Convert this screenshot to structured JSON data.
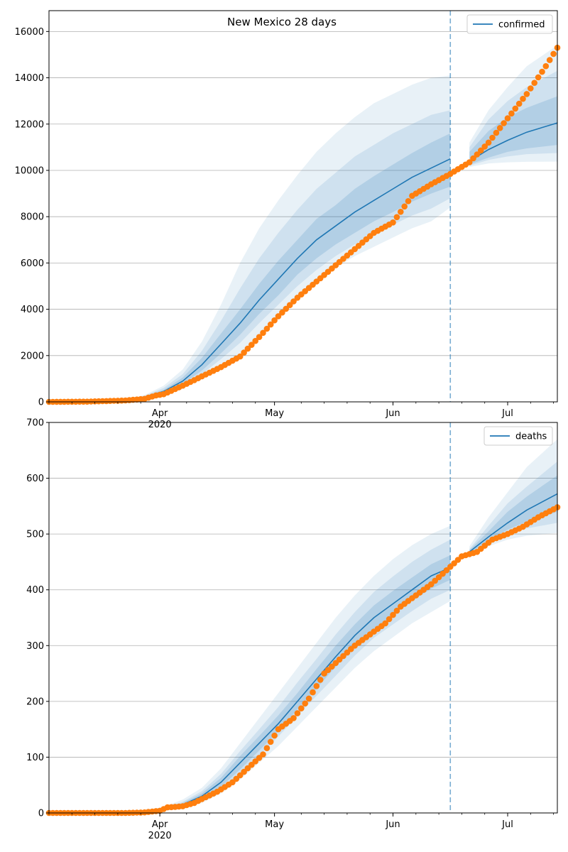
{
  "chart_data": [
    {
      "type": "line",
      "title": "New Mexico 28 days",
      "xlabel": "",
      "ylabel": "",
      "ylim": [
        0,
        16900
      ],
      "xlim_days": [
        0,
        133
      ],
      "yticks": [
        0,
        2000,
        4000,
        6000,
        8000,
        10000,
        12000,
        14000,
        16000
      ],
      "grid": true,
      "legend": "top-right",
      "x_axis": {
        "type": "date",
        "start": "2020-03-03",
        "ticks": [
          {
            "day": 29,
            "label": "Apr",
            "sublabel": "2020"
          },
          {
            "day": 59,
            "label": "May",
            "sublabel": ""
          },
          {
            "day": 90,
            "label": "Jun",
            "sublabel": ""
          },
          {
            "day": 120,
            "label": "Jul",
            "sublabel": ""
          }
        ],
        "minor_ticks": [
          0,
          6,
          12,
          18,
          24,
          36,
          42,
          48,
          54,
          66,
          72,
          78,
          84,
          96,
          102,
          108,
          114,
          126,
          132
        ]
      },
      "forecast_start_day": 105,
      "series": [
        {
          "name": "confirmed",
          "kind": "model",
          "color": "#1f77b4",
          "x": [
            0,
            10,
            20,
            25,
            30,
            35,
            40,
            45,
            50,
            55,
            60,
            65,
            70,
            75,
            80,
            85,
            90,
            95,
            100,
            105,
            110,
            115,
            120,
            125,
            133
          ],
          "y": [
            0,
            10,
            80,
            200,
            450,
            900,
            1600,
            2500,
            3400,
            4400,
            5300,
            6200,
            7000,
            7600,
            8200,
            8700,
            9200,
            9700,
            10100,
            10500,
            10400,
            10900,
            11300,
            11650,
            12050
          ],
          "bands": [
            {
              "lower": [
                0,
                8,
                55,
                140,
                300,
                600,
                1000,
                1500,
                2100,
                2900,
                3600,
                4400,
                5100,
                5800,
                6300,
                6700,
                7100,
                7500,
                7800,
                8400,
                10150,
                10300,
                10350,
                10370,
                10380
              ],
              "upper": [
                0,
                14,
                110,
                290,
                700,
                1400,
                2600,
                4200,
                6000,
                7500,
                8700,
                9800,
                10800,
                11600,
                12300,
                12900,
                13300,
                13700,
                14000,
                14100,
                11200,
                12600,
                13600,
                14500,
                15400
              ]
            },
            {
              "lower": [
                0,
                9,
                62,
                160,
                350,
                700,
                1200,
                1850,
                2550,
                3400,
                4200,
                5000,
                5700,
                6300,
                6800,
                7250,
                7650,
                8050,
                8350,
                8800,
                10200,
                10450,
                10600,
                10700,
                10750
              ],
              "upper": [
                0,
                12,
                100,
                260,
                600,
                1200,
                2200,
                3500,
                4900,
                6200,
                7300,
                8300,
                9200,
                9900,
                10600,
                11100,
                11600,
                12000,
                12400,
                12600,
                11000,
                12200,
                13000,
                13600,
                14300
              ]
            },
            {
              "lower": [
                0,
                9,
                70,
                175,
                390,
                780,
                1350,
                2100,
                2900,
                3800,
                4600,
                5500,
                6200,
                6800,
                7300,
                7800,
                8200,
                8650,
                9000,
                9300,
                10250,
                10550,
                10800,
                10950,
                11100
              ],
              "upper": [
                0,
                11,
                90,
                230,
                520,
                1050,
                1900,
                2950,
                4000,
                5100,
                6100,
                7000,
                7900,
                8500,
                9200,
                9750,
                10250,
                10750,
                11200,
                11600,
                10800,
                11700,
                12300,
                12700,
                13200
              ]
            }
          ]
        },
        {
          "name": "",
          "kind": "observed",
          "color": "#ff7f0e",
          "x": [
            0,
            10,
            20,
            25,
            28,
            30,
            35,
            40,
            45,
            50,
            55,
            60,
            65,
            70,
            75,
            80,
            85,
            90,
            95,
            100,
            105,
            110,
            115,
            120,
            125,
            130,
            133
          ],
          "y": [
            0,
            10,
            60,
            130,
            280,
            330,
            700,
            1100,
            1500,
            1960,
            2800,
            3700,
            4500,
            5200,
            5900,
            6600,
            7300,
            7750,
            8900,
            9400,
            9850,
            10350,
            11200,
            12250,
            13300,
            14500,
            15300
          ]
        }
      ]
    },
    {
      "type": "line",
      "title": "",
      "xlabel": "",
      "ylabel": "",
      "ylim": [
        0,
        700
      ],
      "xlim_days": [
        0,
        133
      ],
      "yticks": [
        0,
        100,
        200,
        300,
        400,
        500,
        600,
        700
      ],
      "grid": true,
      "legend": "top-right",
      "x_axis": {
        "type": "date",
        "start": "2020-03-03",
        "ticks": [
          {
            "day": 29,
            "label": "Apr",
            "sublabel": "2020"
          },
          {
            "day": 59,
            "label": "May",
            "sublabel": ""
          },
          {
            "day": 90,
            "label": "Jun",
            "sublabel": ""
          },
          {
            "day": 120,
            "label": "Jul",
            "sublabel": ""
          }
        ],
        "minor_ticks": [
          0,
          6,
          12,
          18,
          24,
          36,
          42,
          48,
          54,
          66,
          72,
          78,
          84,
          96,
          102,
          108,
          114,
          126,
          132
        ]
      },
      "forecast_start_day": 105,
      "series": [
        {
          "name": "deaths",
          "kind": "model",
          "color": "#1f77b4",
          "x": [
            0,
            20,
            25,
            30,
            35,
            40,
            45,
            50,
            55,
            60,
            65,
            70,
            75,
            80,
            85,
            90,
            95,
            100,
            105,
            110,
            115,
            120,
            125,
            133
          ],
          "y": [
            0,
            0,
            2,
            7,
            15,
            30,
            55,
            90,
            125,
            160,
            200,
            240,
            280,
            318,
            350,
            375,
            400,
            425,
            440,
            468,
            495,
            520,
            543,
            572
          ],
          "bands": [
            {
              "lower": [
                0,
                0,
                1,
                4,
                8,
                18,
                35,
                60,
                90,
                120,
                155,
                190,
                225,
                260,
                290,
                315,
                340,
                360,
                380,
                462,
                478,
                490,
                497,
                502
              ],
              "upper": [
                0,
                0,
                4,
                11,
                24,
                45,
                80,
                125,
                170,
                215,
                260,
                305,
                350,
                390,
                425,
                455,
                480,
                500,
                515,
                478,
                530,
                575,
                620,
                670
              ]
            },
            {
              "lower": [
                0,
                0,
                1,
                5,
                10,
                22,
                42,
                70,
                103,
                137,
                174,
                210,
                246,
                282,
                314,
                338,
                362,
                384,
                400,
                464,
                484,
                500,
                510,
                520
              ],
              "upper": [
                0,
                0,
                3,
                9,
                20,
                39,
                70,
                111,
                150,
                190,
                234,
                276,
                320,
                360,
                396,
                424,
                450,
                472,
                490,
                473,
                515,
                555,
                585,
                630
              ]
            },
            {
              "lower": [
                0,
                0,
                1,
                6,
                12,
                25,
                47,
                78,
                112,
                146,
                186,
                223,
                262,
                298,
                330,
                355,
                380,
                402,
                418,
                465,
                488,
                508,
                522,
                540
              ],
              "upper": [
                0,
                0,
                3,
                8,
                18,
                35,
                63,
                102,
                138,
                175,
                215,
                258,
                300,
                338,
                372,
                398,
                422,
                446,
                462,
                471,
                505,
                540,
                567,
                605
              ]
            }
          ]
        },
        {
          "name": "",
          "kind": "observed",
          "color": "#ff7f0e",
          "x": [
            0,
            10,
            20,
            25,
            29,
            31,
            35,
            38,
            40,
            44,
            48,
            52,
            56,
            60,
            64,
            68,
            72,
            76,
            80,
            84,
            88,
            92,
            96,
            100,
            104,
            108,
            112,
            116,
            120,
            124,
            128,
            133
          ],
          "y": [
            0,
            0,
            0,
            1,
            4,
            10,
            12,
            18,
            25,
            38,
            55,
            80,
            105,
            150,
            170,
            205,
            250,
            275,
            300,
            320,
            340,
            370,
            390,
            410,
            435,
            460,
            468,
            490,
            500,
            513,
            530,
            548
          ]
        }
      ]
    }
  ]
}
